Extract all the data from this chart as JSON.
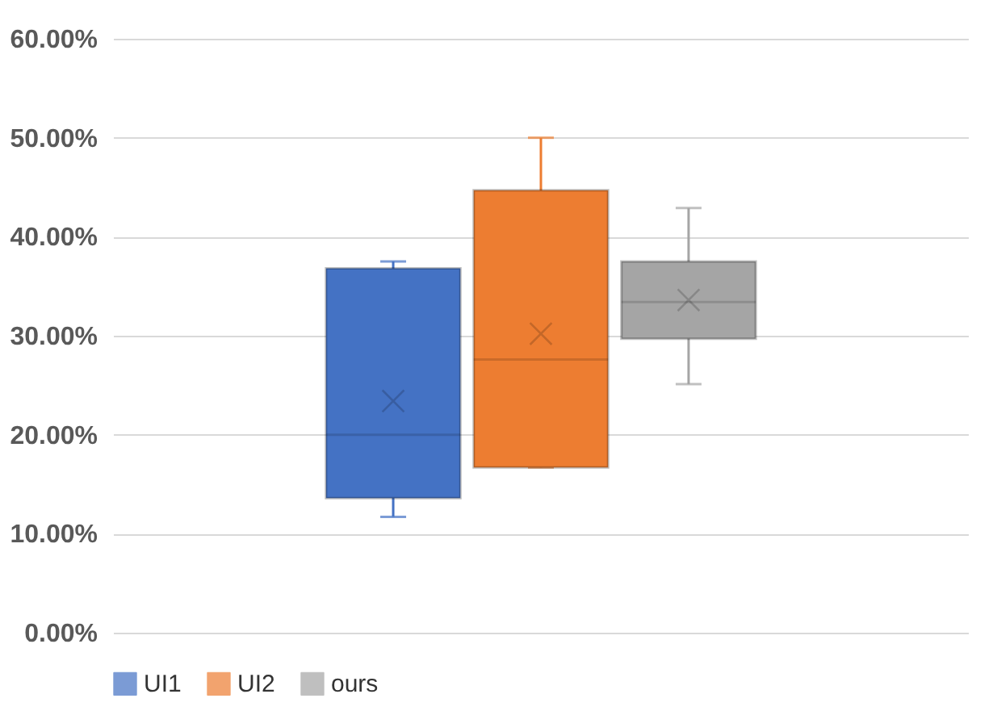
{
  "chart_data": {
    "type": "box",
    "categories": [
      null
    ],
    "series": [
      {
        "name": "UI1",
        "color": "#4472c4",
        "boxes": [
          {
            "low": 11.7,
            "q1": 13.6,
            "median": 20.0,
            "q3": 36.8,
            "high": 37.5,
            "mean": 23.4
          }
        ]
      },
      {
        "name": "UI2",
        "color": "#ed7d31",
        "boxes": [
          {
            "low": 16.7,
            "q1": 16.7,
            "median": 27.6,
            "q3": 44.7,
            "high": 50.0,
            "mean": 30.2
          }
        ]
      },
      {
        "name": "ours",
        "color": "#a5a5a5",
        "boxes": [
          {
            "low": 25.1,
            "q1": 29.7,
            "median": 33.4,
            "q3": 37.5,
            "high": 42.9,
            "mean": 33.6
          }
        ]
      }
    ],
    "ylim": [
      0,
      60
    ],
    "yticks": [
      {
        "value": 0,
        "label": "0.00%"
      },
      {
        "value": 10,
        "label": "10.00%"
      },
      {
        "value": 20,
        "label": "20.00%"
      },
      {
        "value": 30,
        "label": "30.00%"
      },
      {
        "value": 40,
        "label": "40.00%"
      },
      {
        "value": 50,
        "label": "50.00%"
      },
      {
        "value": 60,
        "label": "60.00%"
      }
    ],
    "grid": "y",
    "legend": "bottom",
    "marker": "cross"
  }
}
